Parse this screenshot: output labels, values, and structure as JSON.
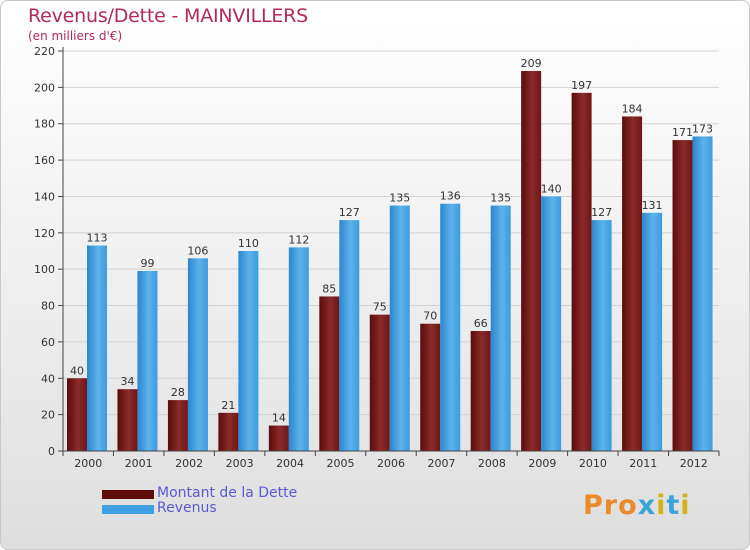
{
  "header": {
    "title": "Revenus/Dette - MAINVILLERS",
    "subtitle": "(en milliers d'€)"
  },
  "colors": {
    "dette": "#7b1f1f",
    "revenus": "#3f9fe0",
    "title": "#b02a5a",
    "legend_text": "#5a5ad2"
  },
  "legend": {
    "items": [
      {
        "label": "Montant de la Dette",
        "color": "#5e0b0b"
      },
      {
        "label": "Revenus",
        "color": "#3f9fe0"
      }
    ]
  },
  "brand": {
    "text": "Proxiti",
    "letter_colors": [
      "#ea8a2b",
      "#ea8a2b",
      "#ea8a2b",
      "#3aa3d9",
      "#d4b21a",
      "#3aa3d9",
      "#d4b21a"
    ]
  },
  "chart_data": {
    "type": "bar",
    "title": "Revenus/Dette - MAINVILLERS",
    "subtitle": "(en milliers d'€)",
    "xlabel": "",
    "ylabel": "",
    "categories": [
      "2000",
      "2001",
      "2002",
      "2003",
      "2004",
      "2005",
      "2006",
      "2007",
      "2008",
      "2009",
      "2010",
      "2011",
      "2012"
    ],
    "series": [
      {
        "name": "Montant de la Dette",
        "values": [
          40,
          34,
          28,
          21,
          14,
          85,
          75,
          70,
          66,
          209,
          197,
          184,
          171
        ]
      },
      {
        "name": "Revenus",
        "values": [
          113,
          99,
          106,
          110,
          112,
          127,
          135,
          136,
          135,
          140,
          127,
          131,
          173
        ]
      }
    ],
    "ylim": [
      0,
      220
    ],
    "yticks": [
      0,
      20,
      40,
      60,
      80,
      100,
      120,
      140,
      160,
      180,
      200,
      220
    ],
    "grid": true,
    "legend_position": "bottom-left"
  }
}
